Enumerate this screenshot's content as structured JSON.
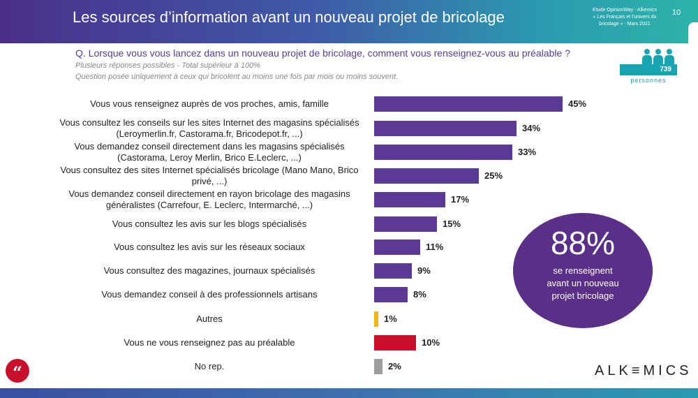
{
  "header": {
    "title": "Les sources d’information avant un nouveau projet de bricolage",
    "meta_lines": [
      "Etude OpinionWay - Alkemics",
      "« Les Français et l’univers du",
      "bricolage » - Mars 2021"
    ],
    "page_number": "10"
  },
  "question": "Q. Lorsque vous vous lancez dans un nouveau projet de bricolage, comment vous renseignez-vous au préalable ?",
  "notes": [
    "Plusieurs réponses possibles - Total supérieur à 100%",
    "Question posée uniquement à ceux qui bricolent au moins une fois par mois ou moins souvent."
  ],
  "sample": {
    "count": "739",
    "label": "personnes",
    "icon": "people-icon"
  },
  "chart_data": {
    "type": "bar",
    "orientation": "horizontal",
    "unit": "%",
    "categories": [
      [
        "Vous vous renseignez auprès de vos proches, amis, famille"
      ],
      [
        "Vous consultez les conseils sur les sites Internet des magasins spécialisés",
        "(Leroymerlin.fr, Castorama.fr, Bricodepot.fr,   ...)"
      ],
      [
        "Vous demandez conseil directement dans les magasins spécialisés",
        "(Castorama, Leroy Merlin, Brico E.Leclerc, ...)"
      ],
      [
        "Vous consultez des sites Internet spécialisés bricolage (Mano Mano, Brico",
        "privé, ...)"
      ],
      [
        "Vous demandez conseil directement en rayon bricolage des magasins",
        "généralistes (Carrefour, E. Leclerc, Intermarché, ...)"
      ],
      [
        "Vous consultez les avis sur les blogs spécialisés"
      ],
      [
        "Vous consultez les avis sur les réseaux sociaux"
      ],
      [
        "Vous consultez des magazines, journaux spécialisés"
      ],
      [
        "Vous demandez conseil à des professionnels artisans"
      ],
      [
        "Autres"
      ],
      [
        "Vous ne vous renseignez pas au préalable"
      ],
      [
        "No rep."
      ]
    ],
    "values": [
      45,
      34,
      33,
      25,
      17,
      15,
      11,
      9,
      8,
      1,
      10,
      2
    ],
    "value_labels": [
      "45%",
      "34%",
      "33%",
      "25%",
      "17%",
      "15%",
      "11%",
      "9%",
      "8%",
      "1%",
      "10%",
      "2%"
    ],
    "colors": [
      "#5b3a96",
      "#5b3a96",
      "#5b3a96",
      "#5b3a96",
      "#5b3a96",
      "#5b3a96",
      "#5b3a96",
      "#5b3a96",
      "#5b3a96",
      "#f2b31f",
      "#c8102e",
      "#9e9e9e"
    ],
    "grid": false,
    "legend": "none"
  },
  "highlight": {
    "value": "88%",
    "text_lines": [
      "se renseignent",
      "avant un nouveau",
      "projet bricolage"
    ]
  },
  "footer": {
    "logo": "ALK≡MICS",
    "quote_icon": "quote-icon"
  }
}
